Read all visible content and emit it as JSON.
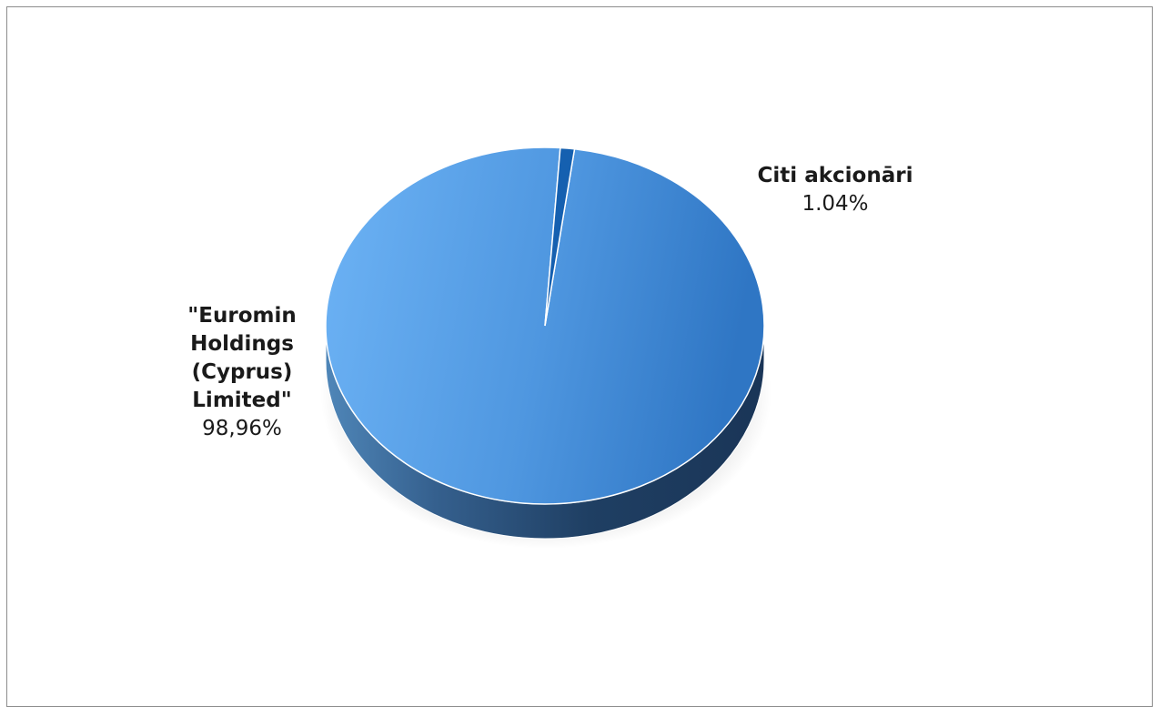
{
  "chart_data": {
    "type": "pie",
    "style": "3d",
    "slices": [
      {
        "label": "\"Euromin Holdings (Cyprus) Limited\"",
        "label_lines": [
          "\"Euromin",
          "Holdings (Cyprus)",
          "Limited\""
        ],
        "value": 98.96,
        "value_label": "98,96%",
        "color": "#4f93dc"
      },
      {
        "label": "Citi akcionāri",
        "label_lines": [
          "Citi akcionāri"
        ],
        "value": 1.04,
        "value_label": "1.04%",
        "color": "#1560b0"
      }
    ],
    "legend": "none"
  }
}
